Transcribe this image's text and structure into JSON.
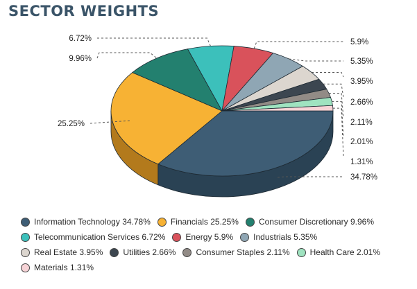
{
  "title": "SECTOR WEIGHTS",
  "chart_data": {
    "type": "pie",
    "title": "SECTOR WEIGHTS",
    "unit": "%",
    "slices": [
      {
        "name": "Information Technology",
        "value": 34.78,
        "label": "34.78%",
        "color": "#3e5d75",
        "side_color": "#2a4254"
      },
      {
        "name": "Financials",
        "value": 25.25,
        "label": "25.25%",
        "color": "#f7b234",
        "side_color": "#b37a1c"
      },
      {
        "name": "Consumer Discretionary",
        "value": 9.96,
        "label": "9.96%",
        "color": "#23806f",
        "side_color": "#175a4e"
      },
      {
        "name": "Telecommunication Services",
        "value": 6.72,
        "label": "6.72%",
        "color": "#3cc0bb",
        "side_color": "#2a8a86"
      },
      {
        "name": "Energy",
        "value": 5.9,
        "label": "5.9%",
        "color": "#d9525b",
        "side_color": "#983a40"
      },
      {
        "name": "Industrials",
        "value": 5.35,
        "label": "5.35%",
        "color": "#8fa6b4",
        "side_color": "#66777f"
      },
      {
        "name": "Real Estate",
        "value": 3.95,
        "label": "3.95%",
        "color": "#dcd6cf",
        "side_color": "#a09b95"
      },
      {
        "name": "Utilities",
        "value": 2.66,
        "label": "2.66%",
        "color": "#3c4650",
        "side_color": "#262c33"
      },
      {
        "name": "Consumer Staples",
        "value": 2.11,
        "label": "2.11%",
        "color": "#928b86",
        "side_color": "#676260"
      },
      {
        "name": "Health Care",
        "value": 2.01,
        "label": "2.01%",
        "color": "#9fe3c0",
        "side_color": "#70a188"
      },
      {
        "name": "Materials",
        "value": 1.31,
        "label": "1.31%",
        "color": "#f6d3d6",
        "side_color": "#b8999c"
      }
    ],
    "legend_rows": [
      [
        0,
        1,
        2
      ],
      [
        3,
        4,
        5
      ],
      [
        6,
        7,
        8,
        9
      ],
      [
        10
      ]
    ],
    "legend_position": "bottom"
  }
}
